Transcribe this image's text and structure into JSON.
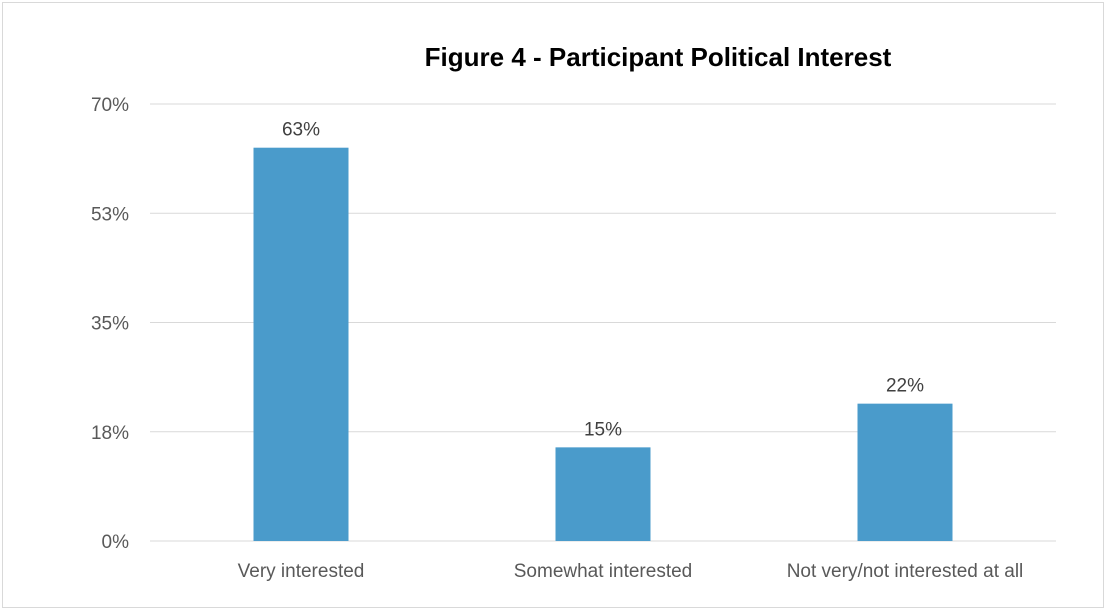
{
  "chart_data": {
    "type": "bar",
    "title": "Figure 4 - Participant Political Interest",
    "xlabel": "",
    "ylabel": "",
    "categories": [
      "Very interested",
      "Somewhat interested",
      "Not very/not interested at all"
    ],
    "values": [
      63,
      15,
      22
    ],
    "data_labels": [
      "63%",
      "15%",
      "22%"
    ],
    "ylim": [
      0,
      70
    ],
    "yticks": [
      0,
      17.5,
      35,
      52.5,
      70
    ],
    "ytick_labels": [
      "0%",
      "18%",
      "35%",
      "53%",
      "70%"
    ],
    "grid": true,
    "legend": "none",
    "bar_color": "#4a9bcb",
    "grid_color": "#d9d9d9"
  }
}
